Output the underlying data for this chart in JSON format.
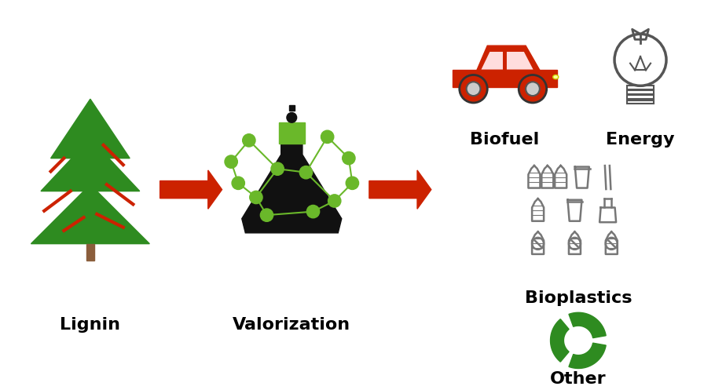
{
  "background_color": "#ffffff",
  "title": "",
  "labels": {
    "lignin": "Lignin",
    "valorization": "Valorization",
    "biofuel": "Biofuel",
    "energy": "Energy",
    "bioplastics": "Bioplastics",
    "other": "Other"
  },
  "label_fontsize": 16,
  "label_fontweight": "bold",
  "arrow_color": "#cc2200",
  "tree_green": "#2e8b20",
  "tree_red": "#cc2200",
  "tree_trunk": "#8B5E3C",
  "flask_black": "#111111",
  "flask_green": "#6ab82a",
  "car_red": "#cc2200",
  "recycle_green": "#2e8b20",
  "icon_gray": "#555555",
  "icon_light_gray": "#aaaaaa"
}
